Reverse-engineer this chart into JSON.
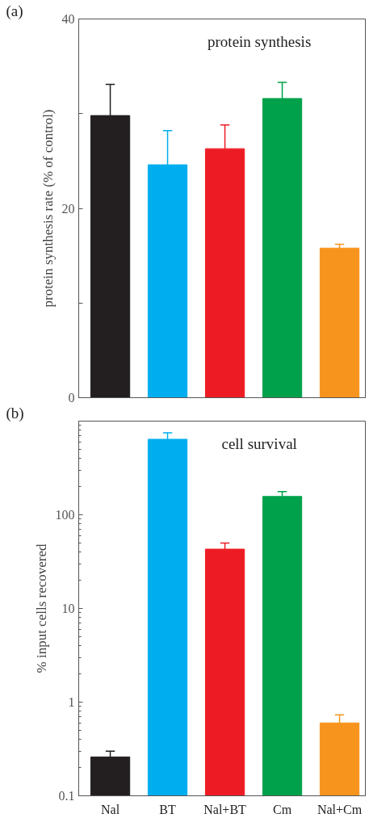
{
  "chart_data": [
    {
      "type": "bar",
      "title": "protein synthesis",
      "ylabel": "protein synthesis rate (% of control)",
      "annotations": [
        "(a)"
      ],
      "categories": [
        null,
        null,
        null,
        null,
        null
      ],
      "values": [
        29.8,
        24.6,
        26.3,
        31.6,
        15.8
      ],
      "colors": [
        "#231f20",
        "#00aeef",
        "#ed1c24",
        "#00a14b",
        "#f7941d"
      ],
      "errors": [
        [
          29.8,
          33.1
        ],
        [
          24.6,
          28.2
        ],
        [
          26.3,
          28.8
        ],
        [
          31.6,
          33.3
        ],
        [
          15.8,
          16.2
        ]
      ],
      "ylim": [
        0,
        40
      ],
      "yticks": [
        0,
        {
          "value": 10,
          "label": null
        },
        20,
        {
          "value": 30,
          "label": null
        },
        40
      ],
      "grid": false
    },
    {
      "type": "bar",
      "title": "cell survival",
      "ylabel": "% input cells recovered",
      "annotations": [
        "(b)"
      ],
      "categories": [
        "Nal",
        "BT",
        "Nal+BT",
        "Cm",
        "Nal+Cm"
      ],
      "values": [
        0.26,
        640,
        43,
        157,
        0.6
      ],
      "colors": [
        "#231f20",
        "#00aeef",
        "#ed1c24",
        "#00a14b",
        "#f7941d"
      ],
      "errors": [
        [
          0.26,
          0.3
        ],
        [
          640,
          750
        ],
        [
          43,
          50
        ],
        [
          157,
          177
        ],
        [
          0.6,
          0.73
        ]
      ],
      "log": true,
      "ylim": [
        0.1,
        1000
      ],
      "yticks": [
        0.1,
        1,
        10,
        100,
        {
          "value": 1000,
          "label": null
        }
      ],
      "grid": false
    }
  ]
}
